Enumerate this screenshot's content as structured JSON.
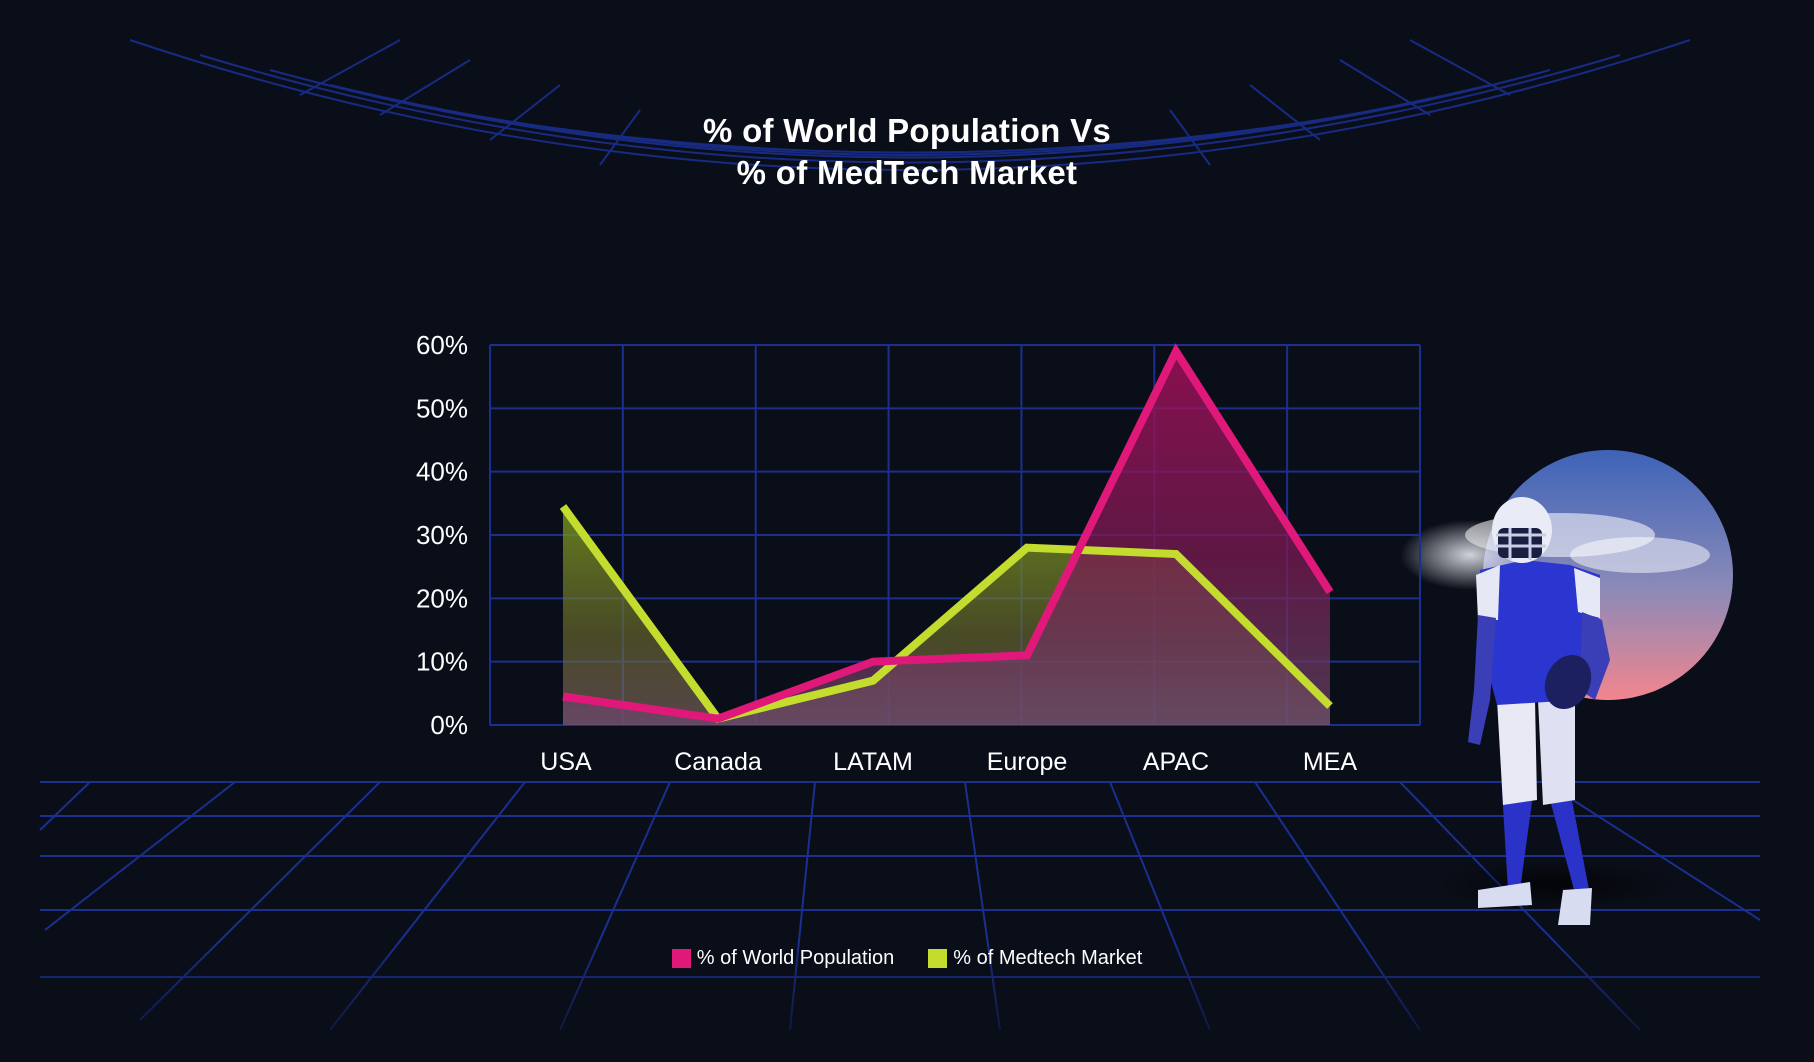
{
  "chart_data": {
    "type": "area",
    "title_lines": [
      "% of World Population Vs",
      "% of MedTech Market"
    ],
    "categories": [
      "USA",
      "Canada",
      "LATAM",
      "Europe",
      "APAC",
      "MEA"
    ],
    "y_ticks": [
      "0%",
      "10%",
      "20%",
      "30%",
      "40%",
      "50%",
      "60%"
    ],
    "ylim": [
      0,
      60
    ],
    "grid": true,
    "legend_position": "bottom",
    "series": [
      {
        "name": "% of World Population",
        "color": "#e0187a",
        "values": [
          4.5,
          1,
          10,
          11,
          59,
          21
        ]
      },
      {
        "name": "% of Medtech Market",
        "color": "#c3dc2e",
        "values": [
          34.5,
          1,
          7,
          28,
          27,
          3
        ]
      }
    ]
  },
  "decor": {
    "background": "#0a0e18",
    "grid_color": "#1a2f8f",
    "figure": "football-player",
    "backdrop": "sky-circle"
  }
}
